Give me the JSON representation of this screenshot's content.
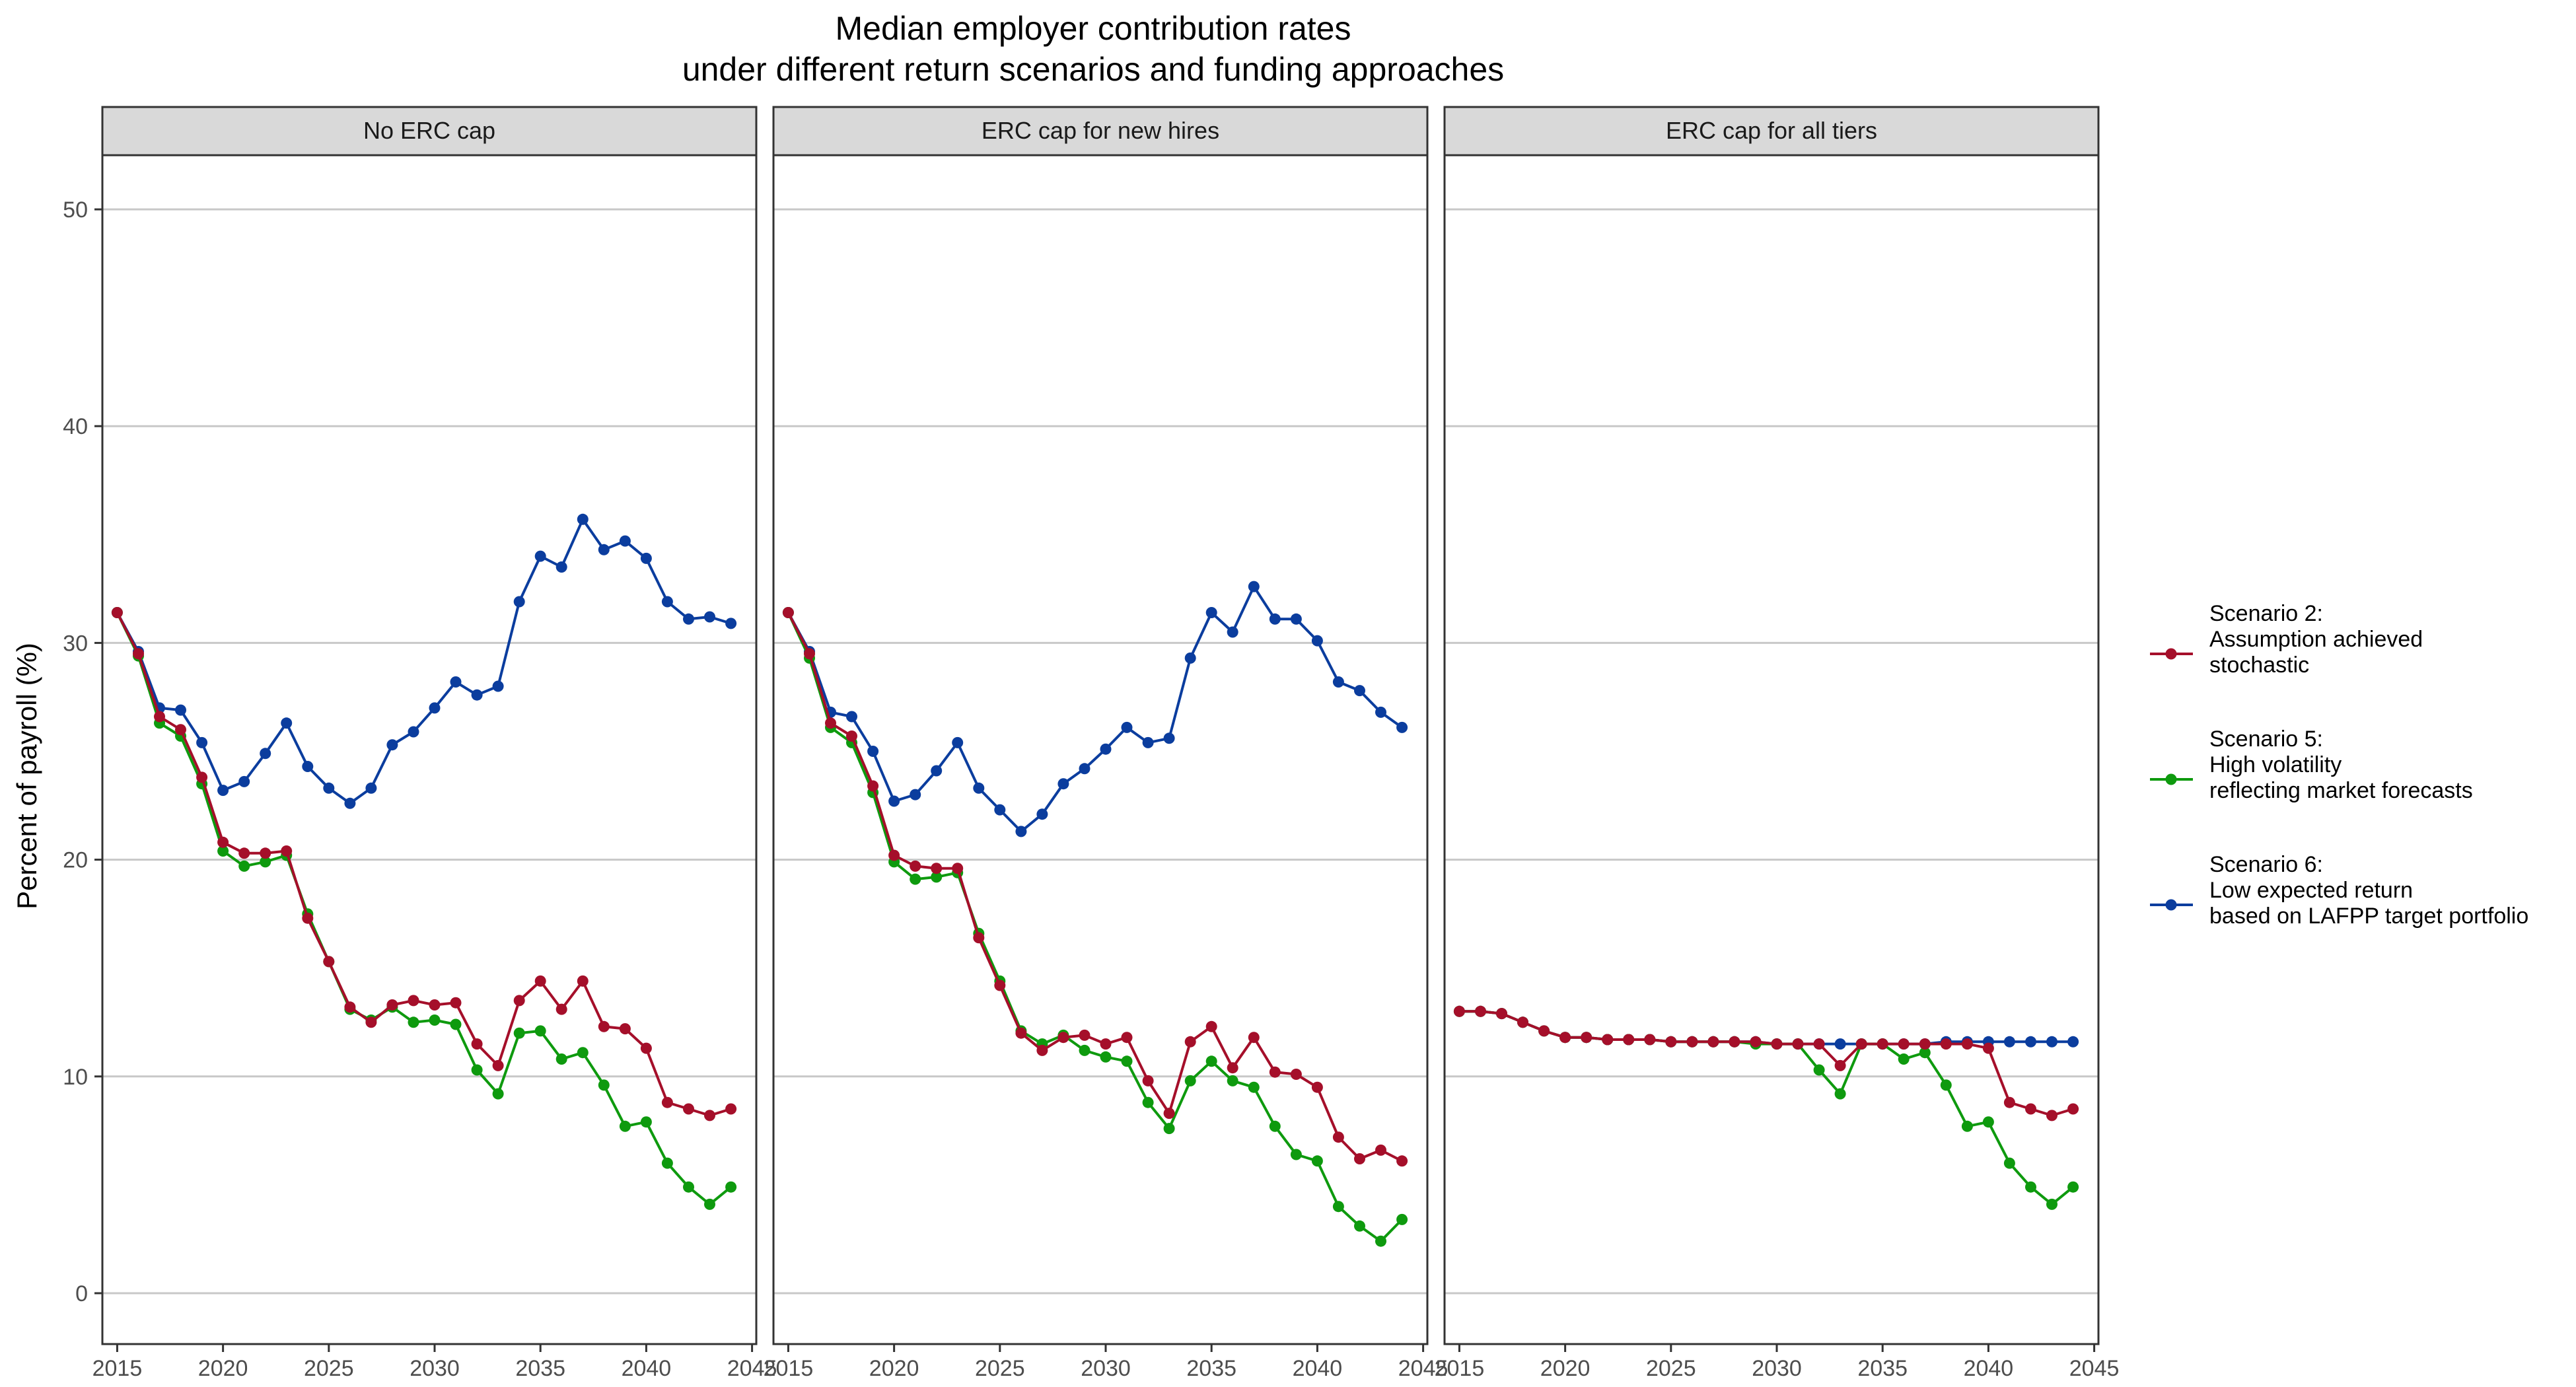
{
  "chart_data": {
    "type": "line",
    "title": [
      "Median employer contribution rates",
      "under different return scenarios and funding approaches"
    ],
    "ylabel": "Percent of payroll (%)",
    "xlabel": "",
    "xlim": [
      2014.3,
      2045.2
    ],
    "ylim": [
      -2.5,
      52.5
    ],
    "xticks": [
      2015,
      2020,
      2025,
      2030,
      2035,
      2040,
      2045
    ],
    "yticks": [
      0,
      10,
      20,
      30,
      40,
      50
    ],
    "grid": "horizontal-major",
    "legend_position": "right",
    "x": [
      2015,
      2016,
      2017,
      2018,
      2019,
      2020,
      2021,
      2022,
      2023,
      2024,
      2025,
      2026,
      2027,
      2028,
      2029,
      2030,
      2031,
      2032,
      2033,
      2034,
      2035,
      2036,
      2037,
      2038,
      2039,
      2040,
      2041,
      2042,
      2043,
      2044
    ],
    "series_meta": [
      {
        "legend": [
          "Scenario 2:",
          "Assumption achieved",
          "stochastic"
        ],
        "color": "#a50f2a"
      },
      {
        "legend": [
          "Scenario 5:",
          "High volatility",
          "reflecting market forecasts"
        ],
        "color": "#0e9a0e"
      },
      {
        "legend": [
          "Scenario 6:",
          "Low expected return",
          "based on LAFPP target portfolio"
        ],
        "color": "#0b3d9e"
      }
    ],
    "panels": [
      {
        "label": "No ERC cap",
        "series": [
          [
            31.4,
            29.5,
            26.6,
            26.0,
            23.8,
            20.8,
            20.3,
            20.3,
            20.4,
            17.3,
            15.3,
            13.2,
            12.5,
            13.3,
            13.5,
            13.3,
            13.4,
            11.5,
            10.5,
            13.5,
            14.4,
            13.1,
            14.4,
            12.3,
            12.2,
            11.3,
            8.8,
            8.5,
            8.2,
            8.5
          ],
          [
            31.4,
            29.4,
            26.3,
            25.7,
            23.5,
            20.4,
            19.7,
            19.9,
            20.2,
            17.5,
            15.3,
            13.1,
            12.6,
            13.2,
            12.5,
            12.6,
            12.4,
            10.3,
            9.2,
            12.0,
            12.1,
            10.8,
            11.1,
            9.6,
            7.7,
            7.9,
            6.0,
            4.9,
            4.1,
            4.9
          ]
        ],
        "series6": [
          31.4,
          29.6,
          27.0,
          26.9,
          25.4,
          23.2,
          23.6,
          24.9,
          26.3,
          24.3,
          23.3,
          22.6,
          23.3,
          25.3,
          25.9,
          27.0,
          28.2,
          27.6,
          28.0,
          31.9,
          34.0,
          33.5,
          35.7,
          34.3,
          34.7,
          33.9,
          31.9,
          31.1,
          31.2,
          30.9
        ]
      },
      {
        "label": "ERC cap for new hires",
        "series": [
          [
            31.4,
            29.5,
            26.3,
            25.7,
            23.4,
            20.2,
            19.7,
            19.6,
            19.6,
            16.4,
            14.2,
            12.0,
            11.2,
            11.8,
            11.9,
            11.5,
            11.8,
            9.8,
            8.3,
            11.6,
            12.3,
            10.4,
            11.8,
            10.2,
            10.1,
            9.5,
            7.2,
            6.2,
            6.6,
            6.1
          ],
          [
            31.4,
            29.3,
            26.1,
            25.4,
            23.1,
            19.9,
            19.1,
            19.2,
            19.4,
            16.6,
            14.4,
            12.1,
            11.5,
            11.9,
            11.2,
            10.9,
            10.7,
            8.8,
            7.6,
            9.8,
            10.7,
            9.8,
            9.5,
            7.7,
            6.4,
            6.1,
            4.0,
            3.1,
            2.4,
            3.4
          ]
        ],
        "series6": [
          31.4,
          29.6,
          26.8,
          26.6,
          25.0,
          22.7,
          23.0,
          24.1,
          25.4,
          23.3,
          22.3,
          21.3,
          22.1,
          23.5,
          24.2,
          25.1,
          26.1,
          25.4,
          25.6,
          29.3,
          31.4,
          30.5,
          32.6,
          31.1,
          31.1,
          30.1,
          28.2,
          27.8,
          26.8,
          26.1
        ]
      },
      {
        "label": "ERC cap for all tiers",
        "series": [
          [
            13.0,
            13.0,
            12.9,
            12.5,
            12.1,
            11.8,
            11.8,
            11.7,
            11.7,
            11.7,
            11.6,
            11.6,
            11.6,
            11.6,
            11.6,
            11.5,
            11.5,
            11.5,
            10.5,
            11.5,
            11.5,
            11.5,
            11.5,
            11.5,
            11.5,
            11.3,
            8.8,
            8.5,
            8.2,
            8.5
          ],
          [
            13.0,
            13.0,
            12.9,
            12.5,
            12.1,
            11.8,
            11.8,
            11.7,
            11.7,
            11.7,
            11.6,
            11.6,
            11.6,
            11.6,
            11.5,
            11.5,
            11.5,
            10.3,
            9.2,
            11.5,
            11.5,
            10.8,
            11.1,
            9.6,
            7.7,
            7.9,
            6.0,
            4.9,
            4.1,
            4.9
          ]
        ],
        "series6": [
          13.0,
          13.0,
          12.9,
          12.5,
          12.1,
          11.8,
          11.8,
          11.7,
          11.7,
          11.7,
          11.6,
          11.6,
          11.6,
          11.6,
          11.6,
          11.5,
          11.5,
          11.5,
          11.5,
          11.5,
          11.5,
          11.5,
          11.5,
          11.6,
          11.6,
          11.6,
          11.6,
          11.6,
          11.6,
          11.6
        ]
      }
    ]
  }
}
